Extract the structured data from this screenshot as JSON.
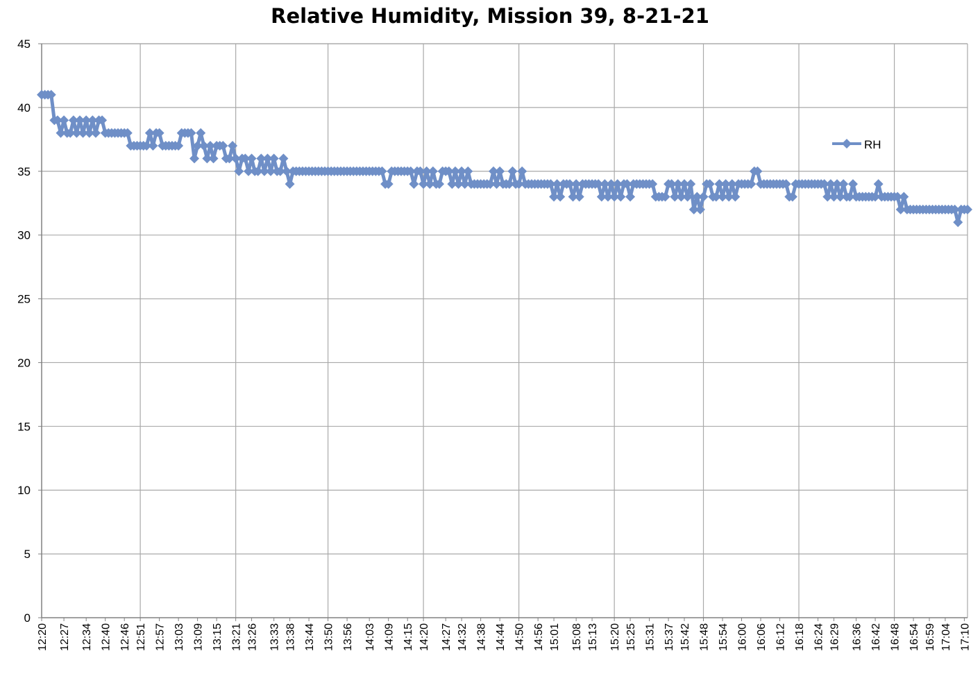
{
  "chart_data": {
    "type": "line",
    "title": "Relative Humidity, Mission 39, 8-21-21",
    "xlabel": "",
    "ylabel": "",
    "ylim": [
      0,
      45
    ],
    "y_ticks": [
      0,
      5,
      10,
      15,
      20,
      25,
      30,
      35,
      40,
      45
    ],
    "grid": true,
    "legend_position": "right",
    "series_color": "#6f8fc7",
    "x_tick_labels": [
      "12:20",
      "12:27",
      "12:34",
      "12:40",
      "12:46",
      "12:51",
      "12:57",
      "13:03",
      "13:09",
      "13:15",
      "13:21",
      "13:26",
      "13:33",
      "13:38",
      "13:44",
      "13:50",
      "13:56",
      "14:03",
      "14:09",
      "14:15",
      "14:20",
      "14:27",
      "14:32",
      "14:38",
      "14:44",
      "14:50",
      "14:56",
      "15:01",
      "15:08",
      "15:13",
      "15:20",
      "15:25",
      "15:31",
      "15:37",
      "15:42",
      "15:48",
      "15:54",
      "16:00",
      "16:06",
      "16:12",
      "16:18",
      "16:24",
      "16:29",
      "16:36",
      "16:42",
      "16:48",
      "16:54",
      "16:59",
      "17:04",
      "17:10"
    ],
    "series": [
      {
        "name": "RH",
        "points": [
          [
            "12:20",
            41
          ],
          [
            "12:21",
            41
          ],
          [
            "12:22",
            41
          ],
          [
            "12:23",
            41
          ],
          [
            "12:24",
            39
          ],
          [
            "12:25",
            39
          ],
          [
            "12:26",
            38
          ],
          [
            "12:27",
            39
          ],
          [
            "12:28",
            38
          ],
          [
            "12:29",
            38
          ],
          [
            "12:30",
            39
          ],
          [
            "12:31",
            38
          ],
          [
            "12:32",
            39
          ],
          [
            "12:33",
            38
          ],
          [
            "12:34",
            39
          ],
          [
            "12:35",
            38
          ],
          [
            "12:36",
            39
          ],
          [
            "12:37",
            38
          ],
          [
            "12:38",
            39
          ],
          [
            "12:39",
            39
          ],
          [
            "12:40",
            38
          ],
          [
            "12:41",
            38
          ],
          [
            "12:42",
            38
          ],
          [
            "12:43",
            38
          ],
          [
            "12:44",
            38
          ],
          [
            "12:45",
            38
          ],
          [
            "12:46",
            38
          ],
          [
            "12:47",
            38
          ],
          [
            "12:48",
            37
          ],
          [
            "12:49",
            37
          ],
          [
            "12:50",
            37
          ],
          [
            "12:51",
            37
          ],
          [
            "12:52",
            37
          ],
          [
            "12:53",
            37
          ],
          [
            "12:54",
            38
          ],
          [
            "12:55",
            37
          ],
          [
            "12:56",
            38
          ],
          [
            "12:57",
            38
          ],
          [
            "12:58",
            37
          ],
          [
            "12:59",
            37
          ],
          [
            "13:00",
            37
          ],
          [
            "13:01",
            37
          ],
          [
            "13:02",
            37
          ],
          [
            "13:03",
            37
          ],
          [
            "13:04",
            38
          ],
          [
            "13:05",
            38
          ],
          [
            "13:06",
            38
          ],
          [
            "13:07",
            38
          ],
          [
            "13:08",
            36
          ],
          [
            "13:09",
            37
          ],
          [
            "13:10",
            38
          ],
          [
            "13:11",
            37
          ],
          [
            "13:12",
            36
          ],
          [
            "13:13",
            37
          ],
          [
            "13:14",
            36
          ],
          [
            "13:15",
            37
          ],
          [
            "13:16",
            37
          ],
          [
            "13:17",
            37
          ],
          [
            "13:18",
            36
          ],
          [
            "13:19",
            36
          ],
          [
            "13:20",
            37
          ],
          [
            "13:21",
            36
          ],
          [
            "13:22",
            35
          ],
          [
            "13:23",
            36
          ],
          [
            "13:24",
            36
          ],
          [
            "13:25",
            35
          ],
          [
            "13:26",
            36
          ],
          [
            "13:27",
            35
          ],
          [
            "13:28",
            35
          ],
          [
            "13:29",
            36
          ],
          [
            "13:30",
            35
          ],
          [
            "13:31",
            36
          ],
          [
            "13:32",
            35
          ],
          [
            "13:33",
            36
          ],
          [
            "13:34",
            35
          ],
          [
            "13:35",
            35
          ],
          [
            "13:36",
            36
          ],
          [
            "13:37",
            35
          ],
          [
            "13:38",
            34
          ],
          [
            "13:39",
            35
          ],
          [
            "13:40",
            35
          ],
          [
            "13:41",
            35
          ],
          [
            "13:42",
            35
          ],
          [
            "13:43",
            35
          ],
          [
            "13:44",
            35
          ],
          [
            "13:45",
            35
          ],
          [
            "13:46",
            35
          ],
          [
            "13:47",
            35
          ],
          [
            "13:48",
            35
          ],
          [
            "13:49",
            35
          ],
          [
            "13:50",
            35
          ],
          [
            "13:51",
            35
          ],
          [
            "13:52",
            35
          ],
          [
            "13:53",
            35
          ],
          [
            "13:54",
            35
          ],
          [
            "13:55",
            35
          ],
          [
            "13:56",
            35
          ],
          [
            "13:57",
            35
          ],
          [
            "13:58",
            35
          ],
          [
            "13:59",
            35
          ],
          [
            "14:00",
            35
          ],
          [
            "14:01",
            35
          ],
          [
            "14:02",
            35
          ],
          [
            "14:03",
            35
          ],
          [
            "14:04",
            35
          ],
          [
            "14:05",
            35
          ],
          [
            "14:06",
            35
          ],
          [
            "14:07",
            35
          ],
          [
            "14:08",
            34
          ],
          [
            "14:09",
            34
          ],
          [
            "14:10",
            35
          ],
          [
            "14:11",
            35
          ],
          [
            "14:12",
            35
          ],
          [
            "14:13",
            35
          ],
          [
            "14:14",
            35
          ],
          [
            "14:15",
            35
          ],
          [
            "14:16",
            35
          ],
          [
            "14:17",
            34
          ],
          [
            "14:18",
            35
          ],
          [
            "14:19",
            35
          ],
          [
            "14:20",
            34
          ],
          [
            "14:21",
            35
          ],
          [
            "14:22",
            34
          ],
          [
            "14:23",
            35
          ],
          [
            "14:24",
            34
          ],
          [
            "14:25",
            34
          ],
          [
            "14:26",
            35
          ],
          [
            "14:27",
            35
          ],
          [
            "14:28",
            35
          ],
          [
            "14:29",
            34
          ],
          [
            "14:30",
            35
          ],
          [
            "14:31",
            34
          ],
          [
            "14:32",
            35
          ],
          [
            "14:33",
            34
          ],
          [
            "14:34",
            35
          ],
          [
            "14:35",
            34
          ],
          [
            "14:36",
            34
          ],
          [
            "14:37",
            34
          ],
          [
            "14:38",
            34
          ],
          [
            "14:39",
            34
          ],
          [
            "14:40",
            34
          ],
          [
            "14:41",
            34
          ],
          [
            "14:42",
            35
          ],
          [
            "14:43",
            34
          ],
          [
            "14:44",
            35
          ],
          [
            "14:45",
            34
          ],
          [
            "14:46",
            34
          ],
          [
            "14:47",
            34
          ],
          [
            "14:48",
            35
          ],
          [
            "14:49",
            34
          ],
          [
            "14:50",
            34
          ],
          [
            "14:51",
            35
          ],
          [
            "14:52",
            34
          ],
          [
            "14:53",
            34
          ],
          [
            "14:54",
            34
          ],
          [
            "14:55",
            34
          ],
          [
            "14:56",
            34
          ],
          [
            "14:57",
            34
          ],
          [
            "14:58",
            34
          ],
          [
            "14:59",
            34
          ],
          [
            "15:00",
            34
          ],
          [
            "15:01",
            33
          ],
          [
            "15:02",
            34
          ],
          [
            "15:03",
            33
          ],
          [
            "15:04",
            34
          ],
          [
            "15:05",
            34
          ],
          [
            "15:06",
            34
          ],
          [
            "15:07",
            33
          ],
          [
            "15:08",
            34
          ],
          [
            "15:09",
            33
          ],
          [
            "15:10",
            34
          ],
          [
            "15:11",
            34
          ],
          [
            "15:12",
            34
          ],
          [
            "15:13",
            34
          ],
          [
            "15:14",
            34
          ],
          [
            "15:15",
            34
          ],
          [
            "15:16",
            33
          ],
          [
            "15:17",
            34
          ],
          [
            "15:18",
            33
          ],
          [
            "15:19",
            34
          ],
          [
            "15:20",
            33
          ],
          [
            "15:21",
            34
          ],
          [
            "15:22",
            33
          ],
          [
            "15:23",
            34
          ],
          [
            "15:24",
            34
          ],
          [
            "15:25",
            33
          ],
          [
            "15:26",
            34
          ],
          [
            "15:27",
            34
          ],
          [
            "15:28",
            34
          ],
          [
            "15:29",
            34
          ],
          [
            "15:30",
            34
          ],
          [
            "15:31",
            34
          ],
          [
            "15:32",
            34
          ],
          [
            "15:33",
            33
          ],
          [
            "15:34",
            33
          ],
          [
            "15:35",
            33
          ],
          [
            "15:36",
            33
          ],
          [
            "15:37",
            34
          ],
          [
            "15:38",
            34
          ],
          [
            "15:39",
            33
          ],
          [
            "15:40",
            34
          ],
          [
            "15:41",
            33
          ],
          [
            "15:42",
            34
          ],
          [
            "15:43",
            33
          ],
          [
            "15:44",
            34
          ],
          [
            "15:45",
            32
          ],
          [
            "15:46",
            33
          ],
          [
            "15:47",
            32
          ],
          [
            "15:48",
            33
          ],
          [
            "15:49",
            34
          ],
          [
            "15:50",
            34
          ],
          [
            "15:51",
            33
          ],
          [
            "15:52",
            33
          ],
          [
            "15:53",
            34
          ],
          [
            "15:54",
            33
          ],
          [
            "15:55",
            34
          ],
          [
            "15:56",
            33
          ],
          [
            "15:57",
            34
          ],
          [
            "15:58",
            33
          ],
          [
            "15:59",
            34
          ],
          [
            "16:00",
            34
          ],
          [
            "16:01",
            34
          ],
          [
            "16:02",
            34
          ],
          [
            "16:03",
            34
          ],
          [
            "16:04",
            35
          ],
          [
            "16:05",
            35
          ],
          [
            "16:06",
            34
          ],
          [
            "16:07",
            34
          ],
          [
            "16:08",
            34
          ],
          [
            "16:09",
            34
          ],
          [
            "16:10",
            34
          ],
          [
            "16:11",
            34
          ],
          [
            "16:12",
            34
          ],
          [
            "16:13",
            34
          ],
          [
            "16:14",
            34
          ],
          [
            "16:15",
            33
          ],
          [
            "16:16",
            33
          ],
          [
            "16:17",
            34
          ],
          [
            "16:18",
            34
          ],
          [
            "16:19",
            34
          ],
          [
            "16:20",
            34
          ],
          [
            "16:21",
            34
          ],
          [
            "16:22",
            34
          ],
          [
            "16:23",
            34
          ],
          [
            "16:24",
            34
          ],
          [
            "16:25",
            34
          ],
          [
            "16:26",
            34
          ],
          [
            "16:27",
            33
          ],
          [
            "16:28",
            34
          ],
          [
            "16:29",
            33
          ],
          [
            "16:30",
            34
          ],
          [
            "16:31",
            33
          ],
          [
            "16:32",
            34
          ],
          [
            "16:33",
            33
          ],
          [
            "16:34",
            33
          ],
          [
            "16:35",
            34
          ],
          [
            "16:36",
            33
          ],
          [
            "16:37",
            33
          ],
          [
            "16:38",
            33
          ],
          [
            "16:39",
            33
          ],
          [
            "16:40",
            33
          ],
          [
            "16:41",
            33
          ],
          [
            "16:42",
            33
          ],
          [
            "16:43",
            34
          ],
          [
            "16:44",
            33
          ],
          [
            "16:45",
            33
          ],
          [
            "16:46",
            33
          ],
          [
            "16:47",
            33
          ],
          [
            "16:48",
            33
          ],
          [
            "16:49",
            33
          ],
          [
            "16:50",
            32
          ],
          [
            "16:51",
            33
          ],
          [
            "16:52",
            32
          ],
          [
            "16:53",
            32
          ],
          [
            "16:54",
            32
          ],
          [
            "16:55",
            32
          ],
          [
            "16:56",
            32
          ],
          [
            "16:57",
            32
          ],
          [
            "16:58",
            32
          ],
          [
            "16:59",
            32
          ],
          [
            "17:00",
            32
          ],
          [
            "17:01",
            32
          ],
          [
            "17:02",
            32
          ],
          [
            "17:03",
            32
          ],
          [
            "17:04",
            32
          ],
          [
            "17:05",
            32
          ],
          [
            "17:06",
            32
          ],
          [
            "17:07",
            32
          ],
          [
            "17:08",
            31
          ],
          [
            "17:09",
            32
          ],
          [
            "17:10",
            32
          ],
          [
            "17:11",
            32
          ]
        ]
      }
    ]
  }
}
